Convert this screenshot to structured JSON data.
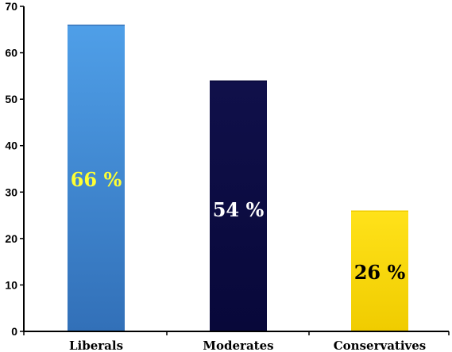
{
  "chart_data": {
    "type": "bar",
    "categories": [
      "Liberals",
      "Moderates",
      "Conservatives"
    ],
    "values": [
      66,
      54,
      26
    ],
    "data_labels": [
      "66 %",
      "54 %",
      "26 %"
    ],
    "ylim": [
      0,
      70
    ],
    "yticks": [
      0,
      10,
      20,
      30,
      40,
      50,
      60,
      70
    ],
    "grid": false,
    "legend": "none",
    "title": "",
    "xlabel": "",
    "ylabel": "",
    "colors": {
      "bars": [
        {
          "top": "#4f9fe8",
          "bottom": "#3270b8"
        },
        {
          "top": "#10104a",
          "bottom": "#08083a"
        },
        {
          "top": "#ffe21a",
          "bottom": "#f0cc00"
        }
      ],
      "data_label_colors": [
        "#ffff33",
        "#ffffff",
        "#000000"
      ],
      "axis": "#000000"
    }
  }
}
